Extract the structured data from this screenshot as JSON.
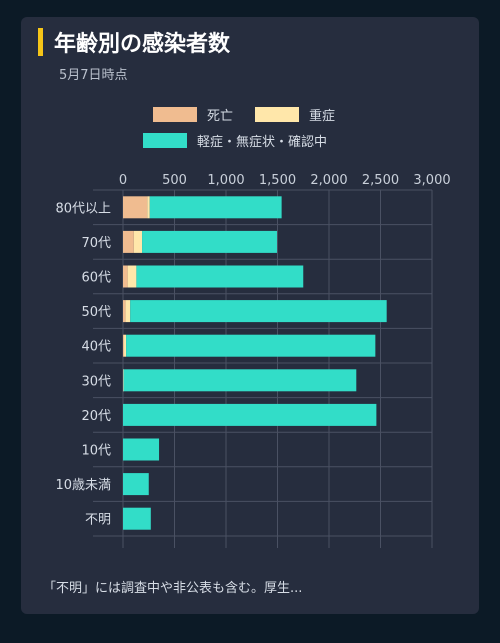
{
  "header": {
    "title": "年齢別の感染者数",
    "subtitle": "5月7日時点"
  },
  "footer": {
    "note": "「不明」には調査中や非公表も含む。厚生..."
  },
  "colors": {
    "death": "#f0bc90",
    "severe": "#ffe7aa",
    "mild": "#32ddc8",
    "accent": "#f5c518",
    "card": "#262d3e",
    "grid": "#4a5163"
  },
  "chart_data": {
    "type": "bar",
    "orientation": "horizontal",
    "stacked": true,
    "categories": [
      "80代以上",
      "70代",
      "60代",
      "50代",
      "40代",
      "30代",
      "20代",
      "10代",
      "10歳未満",
      "不明"
    ],
    "series": [
      {
        "name": "死亡",
        "color": "#f0bc90",
        "values": [
          235,
          105,
          45,
          25,
          10,
          5,
          0,
          0,
          0,
          0
        ]
      },
      {
        "name": "重症",
        "color": "#ffe7aa",
        "values": [
          25,
          80,
          85,
          45,
          20,
          0,
          0,
          0,
          0,
          0
        ]
      },
      {
        "name": "軽症・無症状・確認中",
        "color": "#32ddc8",
        "values": [
          1280,
          1310,
          1620,
          2490,
          2420,
          2260,
          2460,
          350,
          250,
          270
        ]
      }
    ],
    "xticks": [
      "0",
      "500",
      "1,000",
      "1,500",
      "2,000",
      "2,500",
      "3,000"
    ],
    "xlim": [
      0,
      3000
    ],
    "grid": true,
    "legend_position": "top"
  }
}
